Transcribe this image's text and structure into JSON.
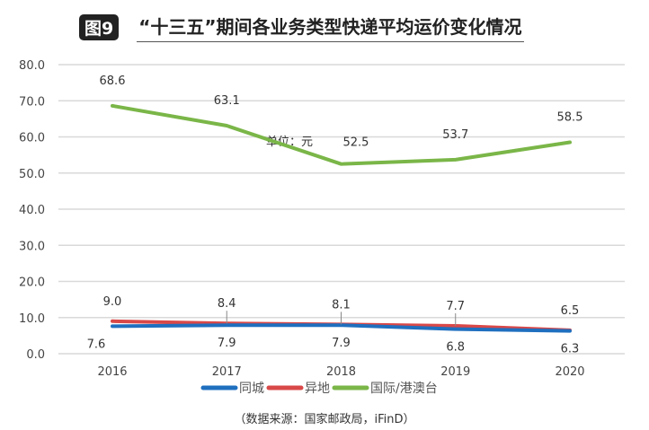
{
  "header": {
    "badge": "图9",
    "title": "“十三五”期间各业务类型快递平均运价变化情况"
  },
  "source": "（数据来源：国家邮政局，iFinD）",
  "chart_data": {
    "type": "line",
    "categories": [
      "2016",
      "2017",
      "2018",
      "2019",
      "2020"
    ],
    "ylim": [
      0,
      80
    ],
    "yticks": [
      "0.0",
      "10.0",
      "20.0",
      "30.0",
      "40.0",
      "50.0",
      "60.0",
      "70.0",
      "80.0"
    ],
    "grid": true,
    "legend_position": "bottom",
    "annotation": "单位：元",
    "series": [
      {
        "name": "同城",
        "color": "#1f6fbf",
        "values": [
          7.6,
          7.9,
          7.9,
          6.8,
          6.3
        ],
        "labels": [
          "7.6",
          "7.9",
          "7.9",
          "6.8",
          "6.3"
        ]
      },
      {
        "name": "异地",
        "color": "#d94848",
        "values": [
          9.0,
          8.4,
          8.1,
          7.7,
          6.5
        ],
        "labels": [
          "9.0",
          "8.4",
          "8.1",
          "7.7",
          "6.5"
        ]
      },
      {
        "name": "国际/港澳台",
        "color": "#7ab648",
        "values": [
          68.6,
          63.1,
          52.5,
          53.7,
          58.5
        ],
        "labels": [
          "68.6",
          "63.1",
          "52.5",
          "53.7",
          "58.5"
        ]
      }
    ]
  }
}
